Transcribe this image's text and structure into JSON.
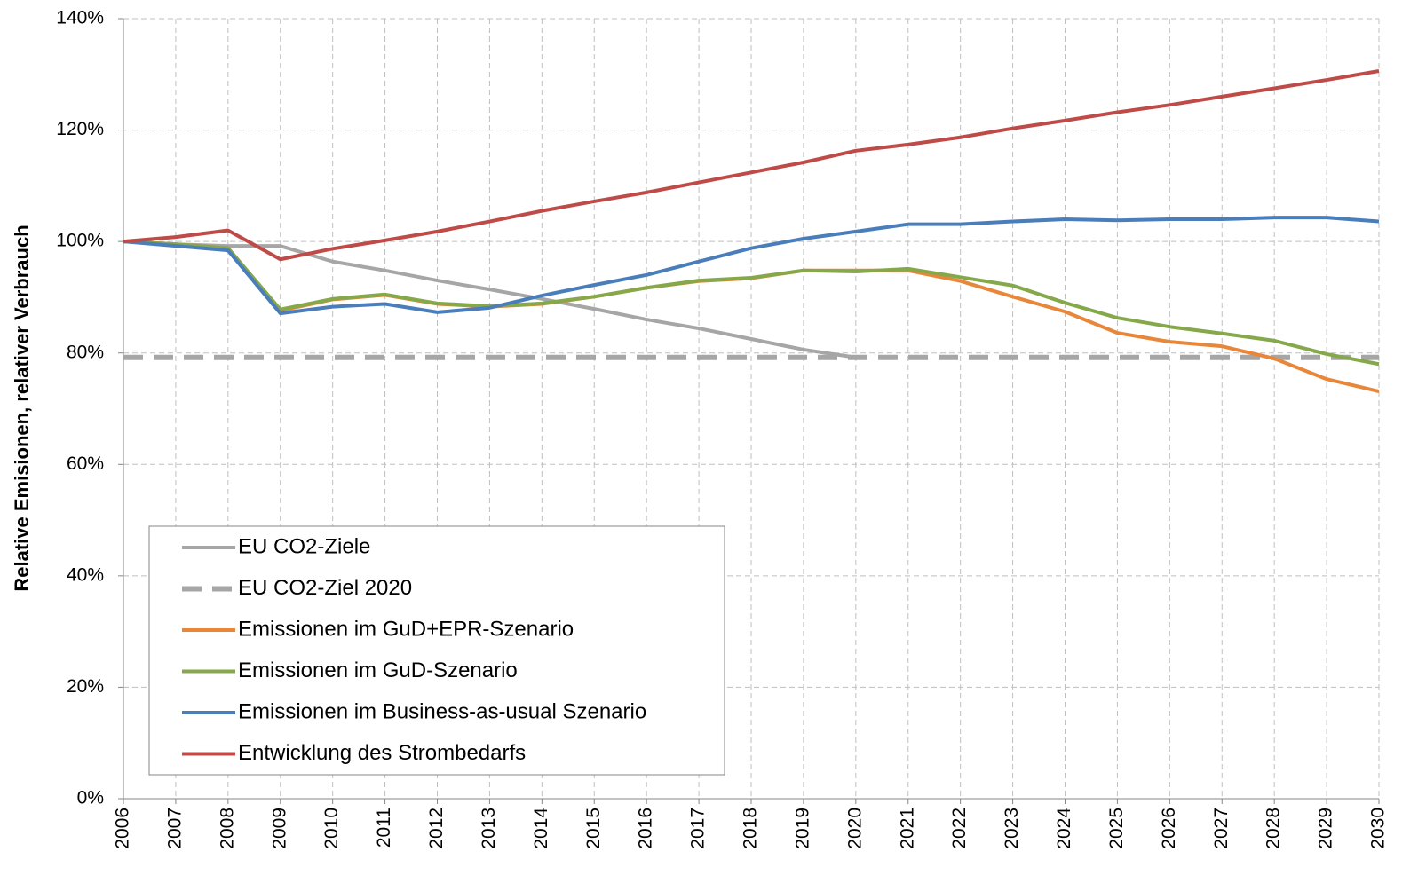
{
  "chart_data": {
    "type": "line",
    "y_label": "Relative Emisionen, relativer Verbrauch",
    "x": [
      2006,
      2007,
      2008,
      2009,
      2010,
      2011,
      2012,
      2013,
      2014,
      2015,
      2016,
      2017,
      2018,
      2019,
      2020,
      2021,
      2022,
      2023,
      2024,
      2025,
      2026,
      2027,
      2028,
      2029,
      2030
    ],
    "xlim": [
      2006,
      2030
    ],
    "xticks": [
      2006,
      2007,
      2008,
      2009,
      2010,
      2011,
      2012,
      2013,
      2014,
      2015,
      2016,
      2017,
      2018,
      2019,
      2020,
      2021,
      2022,
      2023,
      2024,
      2025,
      2026,
      2027,
      2028,
      2029,
      2030
    ],
    "ylim": [
      0,
      140
    ],
    "yticks": [
      {
        "value": 0,
        "label": "0%"
      },
      {
        "value": 20,
        "label": "20%"
      },
      {
        "value": 40,
        "label": "40%"
      },
      {
        "value": 60,
        "label": "60%"
      },
      {
        "value": 80,
        "label": "80%"
      },
      {
        "value": 100,
        "label": "100%"
      },
      {
        "value": 120,
        "label": "120%"
      },
      {
        "value": 140,
        "label": "140%"
      }
    ],
    "grid": true,
    "legend": "lower-left",
    "series": [
      {
        "name": "EU CO2-Ziele",
        "color": "#a6a6a6",
        "dashed": false,
        "values": [
          100,
          99.5,
          99.2,
          99.2,
          96.4,
          94.8,
          93.0,
          91.4,
          89.7,
          87.9,
          86.0,
          84.4,
          82.5,
          80.6,
          79.2,
          null,
          null,
          null,
          null,
          null,
          null,
          null,
          null,
          null,
          null
        ]
      },
      {
        "name": "EU CO2-Ziel 2020",
        "color": "#a6a6a6",
        "dashed": true,
        "values": [
          79.2,
          79.2,
          79.2,
          79.2,
          79.2,
          79.2,
          79.2,
          79.2,
          79.2,
          79.2,
          79.2,
          79.2,
          79.2,
          79.2,
          79.2,
          79.2,
          79.2,
          79.2,
          79.2,
          79.2,
          79.2,
          79.2,
          79.2,
          79.2,
          79.2
        ]
      },
      {
        "name": "Emissionen im GuD+EPR-Szenario",
        "color": "#e8873a",
        "dashed": false,
        "values": [
          100,
          99.5,
          98.8,
          87.6,
          89.6,
          90.4,
          88.8,
          88.3,
          88.8,
          90.1,
          91.7,
          92.9,
          93.4,
          94.8,
          94.8,
          94.8,
          92.9,
          90.1,
          87.4,
          83.6,
          82.0,
          81.2,
          79.0,
          75.3,
          73.1
        ]
      },
      {
        "name": "Emissionen im GuD-Szenario",
        "color": "#84a84a",
        "dashed": false,
        "values": [
          100,
          99.5,
          98.8,
          87.8,
          89.7,
          90.5,
          88.9,
          88.4,
          88.9,
          90.1,
          91.7,
          93.0,
          93.5,
          94.8,
          94.6,
          95.1,
          93.6,
          92.1,
          89.0,
          86.3,
          84.7,
          83.5,
          82.2,
          79.8,
          78.0
        ]
      },
      {
        "name": "Emissionen im Business-as-usual Szenario",
        "color": "#4a7ebb",
        "dashed": false,
        "values": [
          100,
          99.2,
          98.4,
          87.1,
          88.3,
          88.8,
          87.3,
          88.1,
          90.3,
          92.2,
          94.0,
          96.4,
          98.8,
          100.5,
          101.8,
          103.1,
          103.1,
          103.6,
          104.0,
          103.8,
          104.0,
          104.0,
          104.3,
          104.3,
          103.6
        ]
      },
      {
        "name": "Entwicklung des Strombedarfs",
        "color": "#be4b48",
        "dashed": false,
        "values": [
          100,
          100.8,
          102.0,
          96.8,
          98.7,
          100.2,
          101.8,
          103.6,
          105.5,
          107.2,
          108.8,
          110.6,
          112.4,
          114.2,
          116.3,
          117.4,
          118.7,
          120.3,
          121.7,
          123.2,
          124.5,
          126.0,
          127.5,
          129.0,
          130.6
        ]
      }
    ]
  }
}
